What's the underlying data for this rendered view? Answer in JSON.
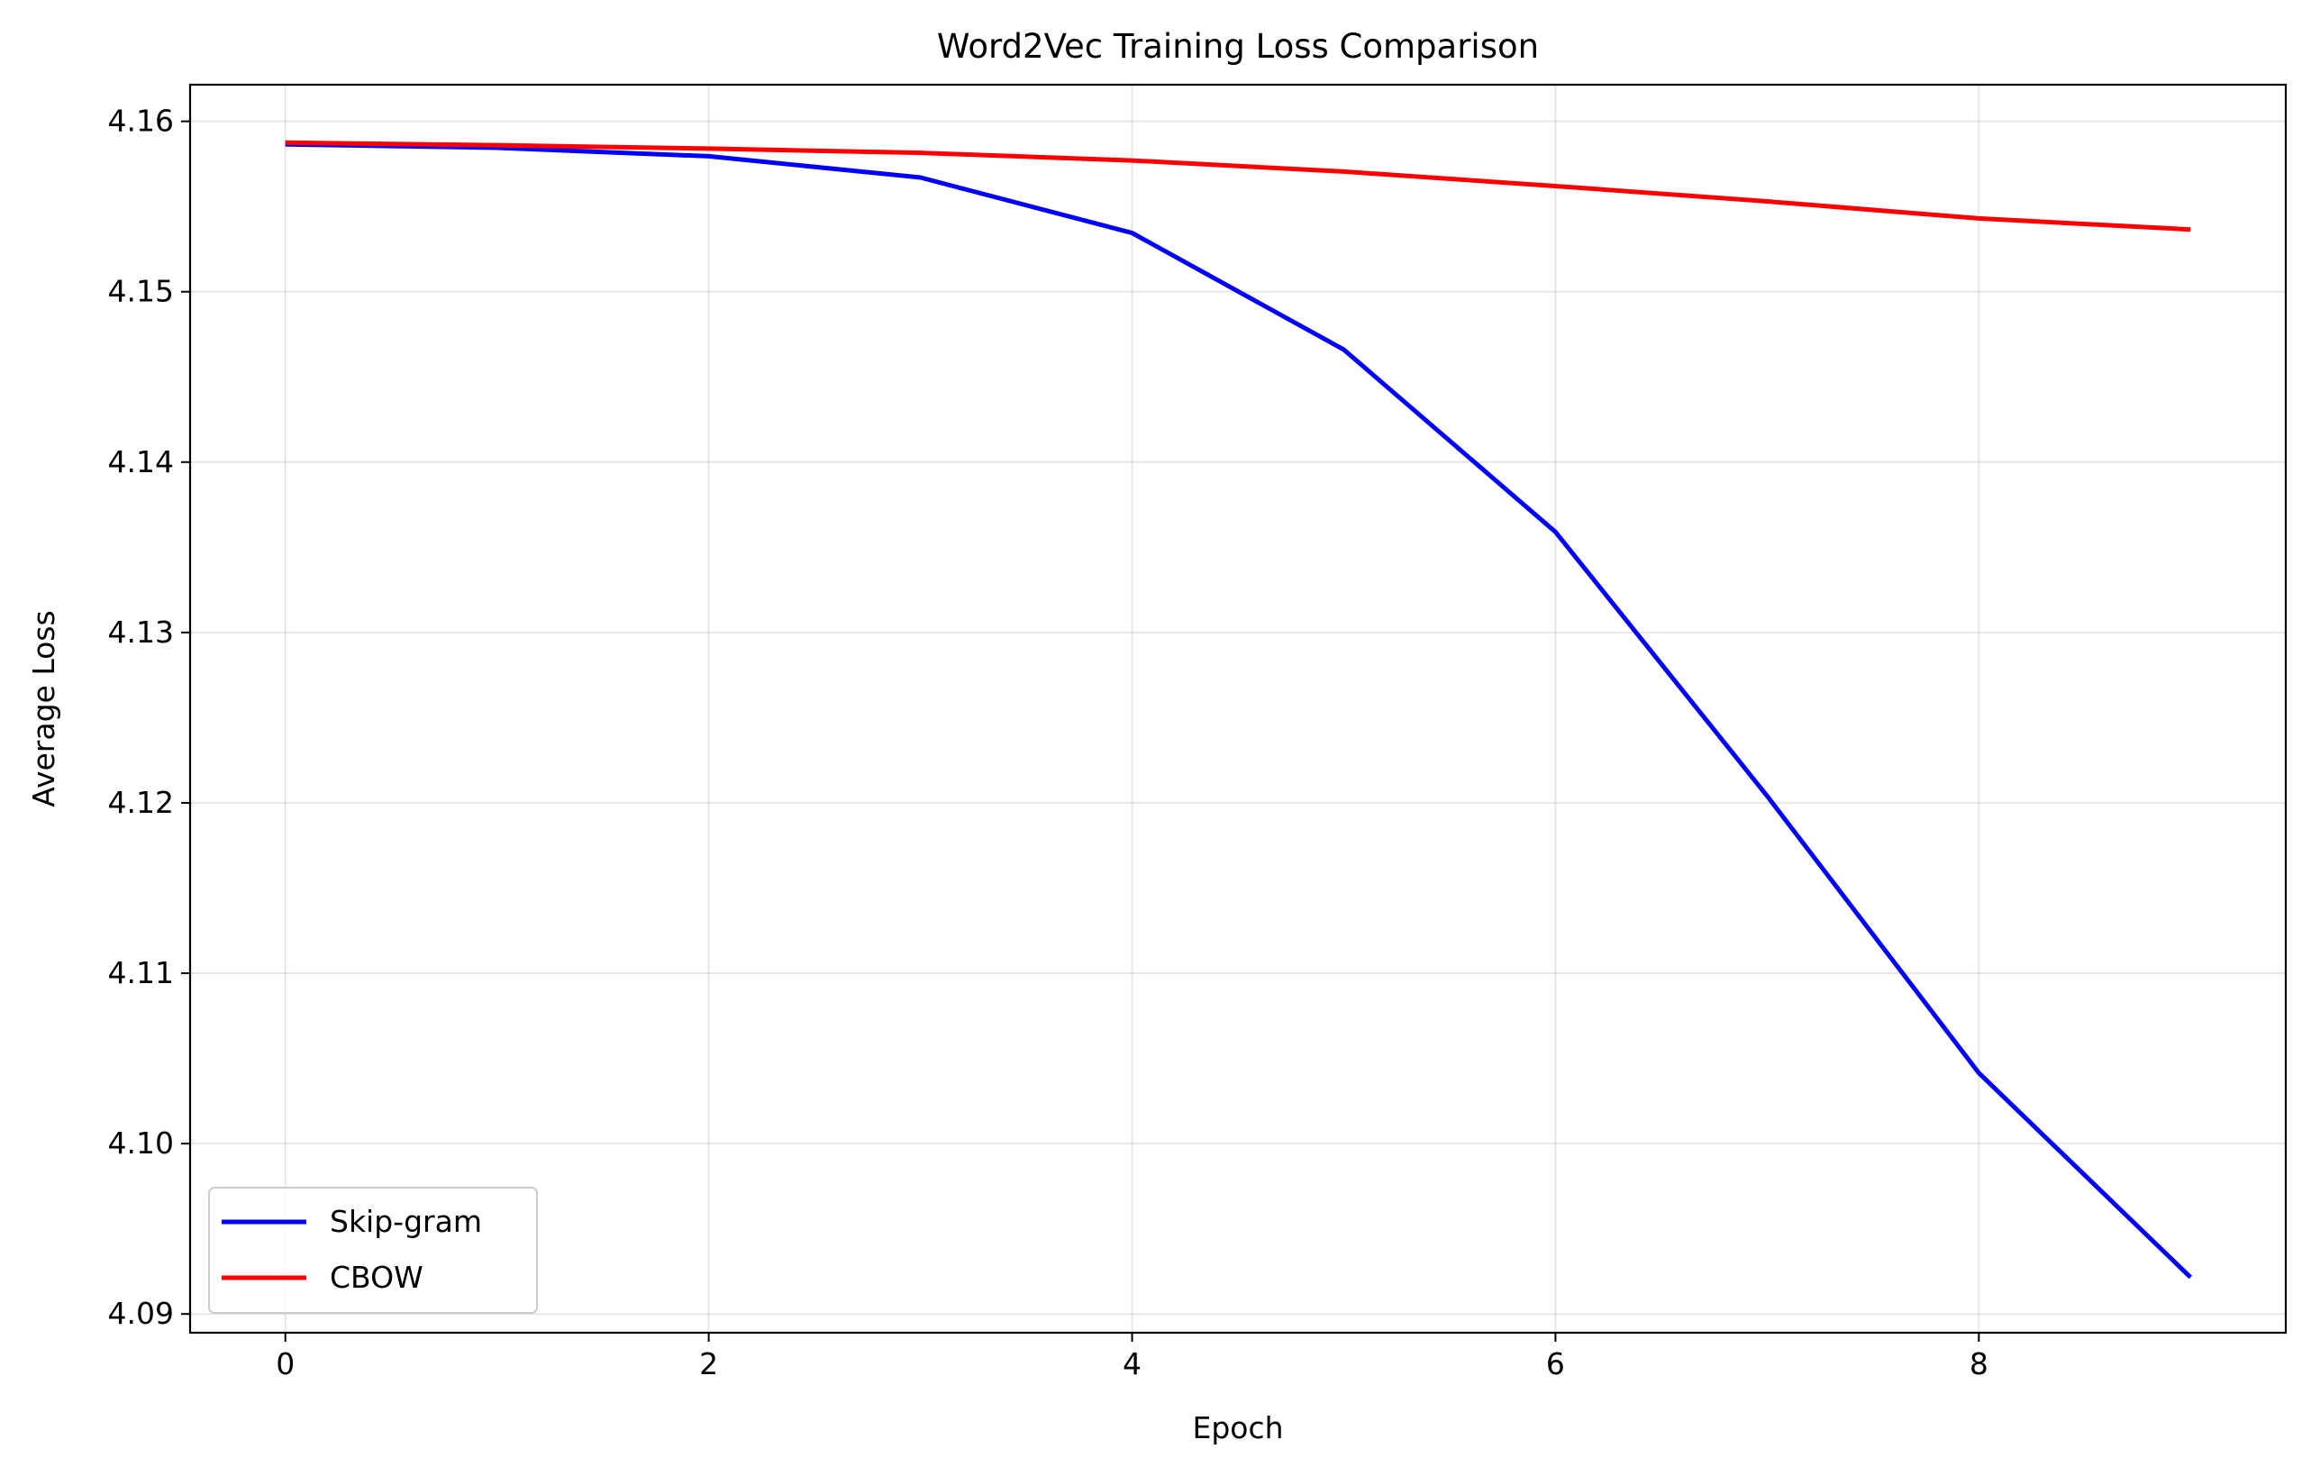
{
  "chart_data": {
    "type": "line",
    "title": "Word2Vec Training Loss Comparison",
    "xlabel": "Epoch",
    "ylabel": "Average Loss",
    "x": [
      0,
      1,
      2,
      3,
      4,
      5,
      6,
      7,
      8,
      9
    ],
    "series": [
      {
        "name": "Skip-gram",
        "color": "#0000ff",
        "values": [
          4.15865,
          4.15845,
          4.15795,
          4.1567,
          4.15345,
          4.1466,
          4.1359,
          4.1204,
          4.10415,
          4.09215
        ]
      },
      {
        "name": "CBOW",
        "color": "#ff0000",
        "values": [
          4.15875,
          4.1586,
          4.1584,
          4.15815,
          4.1577,
          4.15705,
          4.1562,
          4.1553,
          4.1543,
          4.15365
        ]
      }
    ],
    "xlim": [
      -0.45,
      9.45
    ],
    "ylim": [
      4.0889,
      4.16215
    ],
    "xticks": [
      0,
      2,
      4,
      6,
      8
    ],
    "xtick_labels": [
      "0",
      "2",
      "4",
      "6",
      "8"
    ],
    "yticks": [
      4.09,
      4.1,
      4.11,
      4.12,
      4.13,
      4.14,
      4.15,
      4.16
    ],
    "ytick_labels": [
      "4.09",
      "4.10",
      "4.11",
      "4.12",
      "4.13",
      "4.14",
      "4.15",
      "4.16"
    ],
    "grid": true,
    "legend_position": "lower-left"
  }
}
